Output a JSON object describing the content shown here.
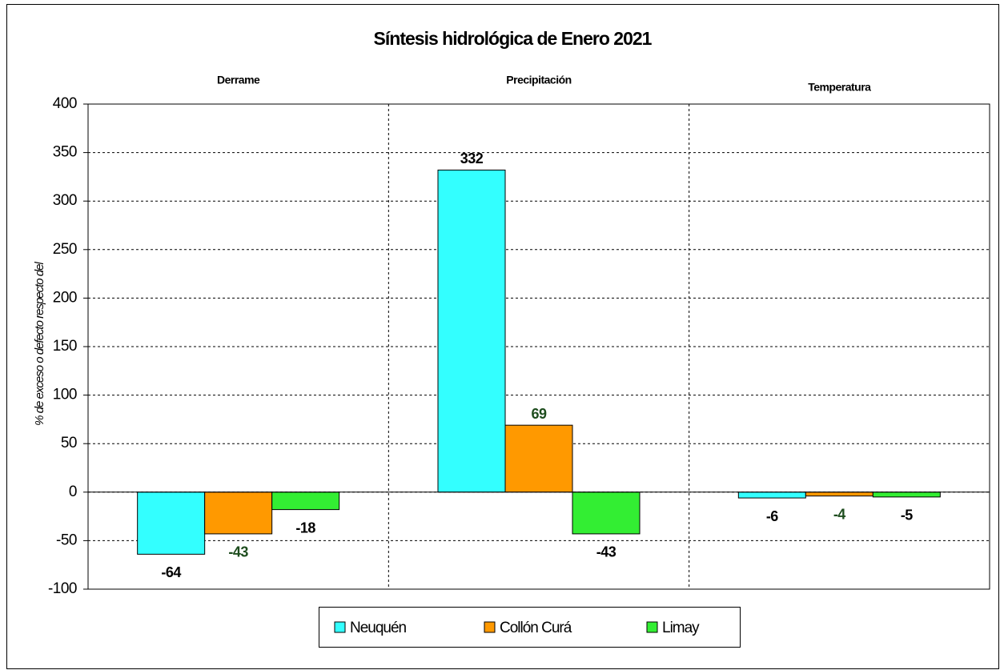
{
  "chart_data": {
    "type": "bar",
    "title": "Síntesis hidrológica de Enero 2021",
    "y_label": "% de exceso o defecto respecto del",
    "categories": [
      "Derrame",
      "Precipitación",
      "Temperatura"
    ],
    "series": [
      {
        "name": "Neuquén",
        "color": "#33ffff",
        "label_color": "#000000",
        "values": [
          -64,
          332,
          -6
        ]
      },
      {
        "name": "Collón Curá",
        "color": "#ff9900",
        "label_color": "#1e4d1e",
        "values": [
          -43,
          69,
          -4
        ]
      },
      {
        "name": "Limay",
        "color": "#33ee33",
        "label_color": "#000000",
        "values": [
          -18,
          -43,
          -5
        ]
      }
    ],
    "ylim": [
      -100,
      400
    ],
    "yticks": [
      -100,
      -50,
      0,
      50,
      100,
      150,
      200,
      250,
      300,
      350,
      400
    ],
    "grid": true,
    "legend": "bottom"
  }
}
